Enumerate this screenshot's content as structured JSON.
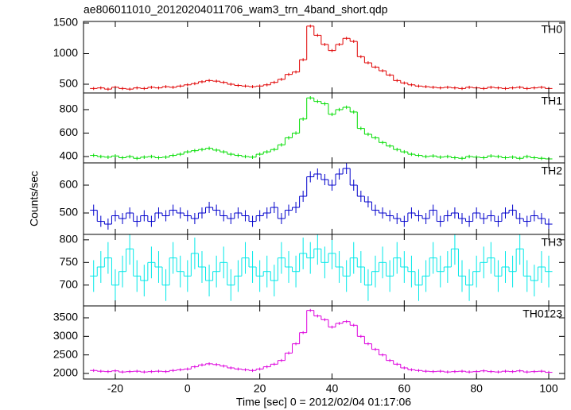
{
  "chart_data": [
    {
      "type": "line",
      "title": "ae806011010_20120204011706_wam3_trn_4band_short.qdp",
      "x": [
        -26,
        -24,
        -22,
        -20,
        -18,
        -16,
        -14,
        -12,
        -10,
        -8,
        -6,
        -4,
        -2,
        0,
        2,
        4,
        6,
        8,
        10,
        12,
        14,
        16,
        18,
        20,
        22,
        24,
        26,
        28,
        30,
        32,
        34,
        36,
        38,
        40,
        42,
        44,
        46,
        48,
        50,
        52,
        54,
        56,
        58,
        60,
        62,
        64,
        66,
        68,
        70,
        72,
        74,
        76,
        78,
        80,
        82,
        84,
        86,
        88,
        90,
        92,
        94,
        96,
        98,
        100
      ],
      "xlim": [
        -28.8,
        104.4
      ],
      "xticks": [
        -20,
        0,
        20,
        40,
        60,
        80,
        100
      ],
      "ylim": [
        357,
        1526
      ],
      "yticks": [
        500,
        1000,
        1500
      ],
      "series": [
        {
          "name": "TH0",
          "color": "#e00000",
          "error": 25,
          "values": [
            430,
            440,
            420,
            450,
            430,
            420,
            440,
            430,
            450,
            440,
            460,
            450,
            470,
            490,
            510,
            540,
            560,
            550,
            530,
            500,
            480,
            470,
            460,
            470,
            490,
            530,
            580,
            660,
            700,
            900,
            1450,
            1300,
            1150,
            1050,
            1150,
            1250,
            1200,
            950,
            850,
            780,
            720,
            650,
            560,
            520,
            490,
            470,
            460,
            450,
            440,
            450,
            440,
            430,
            450,
            440,
            430,
            450,
            440,
            430,
            440,
            450,
            430,
            440,
            450,
            430
          ]
        }
      ]
    },
    {
      "type": "line",
      "x": [
        -26,
        -24,
        -22,
        -20,
        -18,
        -16,
        -14,
        -12,
        -10,
        -8,
        -6,
        -4,
        -2,
        0,
        2,
        4,
        6,
        8,
        10,
        12,
        14,
        16,
        18,
        20,
        22,
        24,
        26,
        28,
        30,
        32,
        34,
        36,
        38,
        40,
        42,
        44,
        46,
        48,
        50,
        52,
        54,
        56,
        58,
        60,
        62,
        64,
        66,
        68,
        70,
        72,
        74,
        76,
        78,
        80,
        82,
        84,
        86,
        88,
        90,
        92,
        94,
        96,
        98,
        100
      ],
      "xlim": [
        -28.8,
        104.4
      ],
      "xticks": [
        -20,
        0,
        20,
        40,
        60,
        80,
        100
      ],
      "ylim": [
        346,
        942
      ],
      "yticks": [
        400,
        600,
        800
      ],
      "series": [
        {
          "name": "TH1",
          "color": "#00dd00",
          "error": 15,
          "values": [
            410,
            400,
            395,
            405,
            390,
            400,
            385,
            395,
            400,
            390,
            395,
            410,
            420,
            440,
            450,
            460,
            470,
            455,
            440,
            420,
            410,
            400,
            395,
            420,
            440,
            460,
            500,
            560,
            600,
            720,
            900,
            870,
            850,
            760,
            800,
            820,
            780,
            640,
            590,
            560,
            520,
            490,
            460,
            440,
            420,
            410,
            400,
            405,
            395,
            400,
            390,
            385,
            400,
            395,
            390,
            405,
            400,
            390,
            395,
            385,
            400,
            390,
            385,
            380
          ]
        }
      ]
    },
    {
      "type": "line",
      "ylabel": "Counts/sec",
      "x": [
        -26,
        -24,
        -22,
        -20,
        -18,
        -16,
        -14,
        -12,
        -10,
        -8,
        -6,
        -4,
        -2,
        0,
        2,
        4,
        6,
        8,
        10,
        12,
        14,
        16,
        18,
        20,
        22,
        24,
        26,
        28,
        30,
        32,
        34,
        36,
        38,
        40,
        42,
        44,
        46,
        48,
        50,
        52,
        54,
        56,
        58,
        60,
        62,
        64,
        66,
        68,
        70,
        72,
        74,
        76,
        78,
        80,
        82,
        84,
        86,
        88,
        90,
        92,
        94,
        96,
        98,
        100
      ],
      "xlim": [
        -28.8,
        104.4
      ],
      "xticks": [
        -20,
        0,
        20,
        40,
        60,
        80,
        100
      ],
      "ylim": [
        423,
        680
      ],
      "yticks": [
        500,
        600
      ],
      "series": [
        {
          "name": "TH2",
          "color": "#0000cc",
          "error": 20,
          "values": [
            510,
            470,
            460,
            490,
            480,
            500,
            470,
            490,
            470,
            500,
            490,
            510,
            500,
            490,
            480,
            500,
            520,
            510,
            490,
            480,
            500,
            490,
            470,
            490,
            500,
            520,
            480,
            510,
            520,
            560,
            630,
            640,
            620,
            600,
            640,
            660,
            600,
            560,
            540,
            510,
            500,
            490,
            480,
            470,
            500,
            490,
            480,
            510,
            470,
            490,
            500,
            480,
            470,
            500,
            480,
            490,
            470,
            500,
            510,
            480,
            470,
            490,
            480,
            460
          ]
        }
      ]
    },
    {
      "type": "line",
      "x": [
        -26,
        -24,
        -22,
        -20,
        -18,
        -16,
        -14,
        -12,
        -10,
        -8,
        -6,
        -4,
        -2,
        0,
        2,
        4,
        6,
        8,
        10,
        12,
        14,
        16,
        18,
        20,
        22,
        24,
        26,
        28,
        30,
        32,
        34,
        36,
        38,
        40,
        42,
        44,
        46,
        48,
        50,
        52,
        54,
        56,
        58,
        60,
        62,
        64,
        66,
        68,
        70,
        72,
        74,
        76,
        78,
        80,
        82,
        84,
        86,
        88,
        90,
        92,
        94,
        96,
        98,
        100
      ],
      "xlim": [
        -28.8,
        104.4
      ],
      "xticks": [
        -20,
        0,
        20,
        40,
        60,
        80,
        100
      ],
      "ylim": [
        654,
        812
      ],
      "yticks": [
        700,
        750,
        800
      ],
      "series": [
        {
          "name": "TH3",
          "color": "#00e8e8",
          "error": 35,
          "values": [
            720,
            740,
            760,
            700,
            730,
            780,
            720,
            710,
            750,
            740,
            700,
            760,
            730,
            720,
            770,
            740,
            710,
            730,
            750,
            700,
            720,
            760,
            740,
            720,
            730,
            710,
            760,
            740,
            730,
            770,
            760,
            780,
            750,
            770,
            740,
            720,
            760,
            740,
            700,
            730,
            750,
            720,
            760,
            740,
            730,
            700,
            720,
            760,
            730,
            740,
            780,
            720,
            700,
            730,
            750,
            760,
            720,
            740,
            730,
            780,
            720,
            710,
            740,
            730
          ]
        }
      ]
    },
    {
      "type": "line",
      "xlabel": "Time [sec] 0 = 2012/02/04 01:17:06",
      "x": [
        -26,
        -24,
        -22,
        -20,
        -18,
        -16,
        -14,
        -12,
        -10,
        -8,
        -6,
        -4,
        -2,
        0,
        2,
        4,
        6,
        8,
        10,
        12,
        14,
        16,
        18,
        20,
        22,
        24,
        26,
        28,
        30,
        32,
        34,
        36,
        38,
        40,
        42,
        44,
        46,
        48,
        50,
        52,
        54,
        56,
        58,
        60,
        62,
        64,
        66,
        68,
        70,
        72,
        74,
        76,
        78,
        80,
        82,
        84,
        86,
        88,
        90,
        92,
        94,
        96,
        98,
        100
      ],
      "xlim": [
        -28.8,
        104.4
      ],
      "xticks": [
        -20,
        0,
        20,
        40,
        60,
        80,
        100
      ],
      "ylim": [
        1850,
        3821
      ],
      "yticks": [
        2000,
        2500,
        3000,
        3500
      ],
      "series": [
        {
          "name": "TH0123",
          "color": "#dd00dd",
          "error": 40,
          "values": [
            2080,
            2060,
            2050,
            2070,
            2040,
            2050,
            2060,
            2040,
            2050,
            2060,
            2050,
            2080,
            2100,
            2120,
            2180,
            2230,
            2260,
            2240,
            2200,
            2150,
            2120,
            2100,
            2080,
            2120,
            2180,
            2250,
            2350,
            2550,
            2800,
            3100,
            3700,
            3550,
            3450,
            3250,
            3350,
            3400,
            3300,
            3000,
            2800,
            2650,
            2500,
            2350,
            2250,
            2150,
            2100,
            2080,
            2060,
            2050,
            2060,
            2040,
            2050,
            2060,
            2040,
            2050,
            2070,
            2050,
            2040,
            2060,
            2050,
            2070,
            2040,
            2050,
            2060,
            2030
          ]
        }
      ]
    }
  ]
}
